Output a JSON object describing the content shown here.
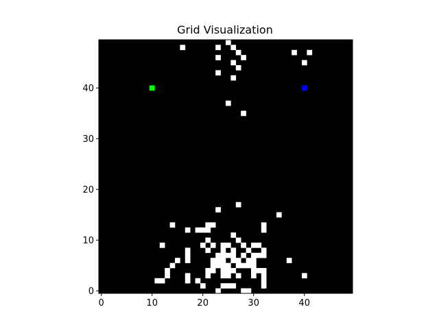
{
  "chart_data": {
    "type": "heatmap",
    "title": "Grid Visualization",
    "grid_size": [
      50,
      50
    ],
    "xlim": [
      -0.5,
      49.5
    ],
    "ylim": [
      -0.5,
      49.5
    ],
    "x_ticks": [
      0,
      10,
      20,
      30,
      40
    ],
    "y_ticks": [
      0,
      10,
      20,
      30,
      40
    ],
    "grid": false,
    "background_color": "#000000",
    "obstacle_color": "#ffffff",
    "start": {
      "x": 10,
      "y": 40,
      "color": "#00ff00"
    },
    "goal": {
      "x": 40,
      "y": 40,
      "color": "#0000ff"
    },
    "obstacles": [
      [
        25,
        49
      ],
      [
        16,
        48
      ],
      [
        23,
        48
      ],
      [
        26,
        48
      ],
      [
        27,
        47
      ],
      [
        38,
        47
      ],
      [
        41,
        47
      ],
      [
        23,
        46
      ],
      [
        28,
        46
      ],
      [
        26,
        45
      ],
      [
        40,
        45
      ],
      [
        27,
        44
      ],
      [
        23,
        43
      ],
      [
        26,
        42
      ],
      [
        25,
        37
      ],
      [
        28,
        35
      ],
      [
        27,
        17
      ],
      [
        23,
        16
      ],
      [
        35,
        15
      ],
      [
        14,
        13
      ],
      [
        21,
        13
      ],
      [
        22,
        13
      ],
      [
        32,
        13
      ],
      [
        17,
        12
      ],
      [
        19,
        12
      ],
      [
        20,
        12
      ],
      [
        21,
        12
      ],
      [
        32,
        12
      ],
      [
        26,
        11
      ],
      [
        21,
        10
      ],
      [
        27,
        10
      ],
      [
        12,
        9
      ],
      [
        20,
        9
      ],
      [
        22,
        9
      ],
      [
        24,
        9
      ],
      [
        25,
        9
      ],
      [
        28,
        9
      ],
      [
        30,
        9
      ],
      [
        31,
        9
      ],
      [
        17,
        8
      ],
      [
        21,
        8
      ],
      [
        24,
        8
      ],
      [
        26,
        8
      ],
      [
        29,
        8
      ],
      [
        32,
        8
      ],
      [
        17,
        7
      ],
      [
        23,
        7
      ],
      [
        24,
        7
      ],
      [
        25,
        7
      ],
      [
        26,
        7
      ],
      [
        28,
        7
      ],
      [
        30,
        7
      ],
      [
        31,
        7
      ],
      [
        32,
        7
      ],
      [
        15,
        6
      ],
      [
        17,
        6
      ],
      [
        22,
        6
      ],
      [
        23,
        6
      ],
      [
        24,
        6
      ],
      [
        26,
        6
      ],
      [
        27,
        6
      ],
      [
        29,
        6
      ],
      [
        30,
        6
      ],
      [
        37,
        6
      ],
      [
        14,
        5
      ],
      [
        22,
        5
      ],
      [
        23,
        5
      ],
      [
        24,
        5
      ],
      [
        25,
        5
      ],
      [
        27,
        5
      ],
      [
        28,
        5
      ],
      [
        29,
        5
      ],
      [
        30,
        5
      ],
      [
        13,
        4
      ],
      [
        21,
        4
      ],
      [
        22,
        4
      ],
      [
        24,
        4
      ],
      [
        25,
        4
      ],
      [
        26,
        4
      ],
      [
        30,
        4
      ],
      [
        31,
        4
      ],
      [
        32,
        4
      ],
      [
        13,
        3
      ],
      [
        17,
        3
      ],
      [
        21,
        3
      ],
      [
        24,
        3
      ],
      [
        25,
        3
      ],
      [
        27,
        3
      ],
      [
        30,
        3
      ],
      [
        32,
        3
      ],
      [
        40,
        3
      ],
      [
        11,
        2
      ],
      [
        12,
        2
      ],
      [
        17,
        2
      ],
      [
        19,
        2
      ],
      [
        32,
        2
      ],
      [
        20,
        1
      ],
      [
        24,
        1
      ],
      [
        25,
        1
      ],
      [
        26,
        1
      ],
      [
        32,
        1
      ],
      [
        23,
        0
      ],
      [
        28,
        0
      ],
      [
        29,
        0
      ]
    ]
  }
}
